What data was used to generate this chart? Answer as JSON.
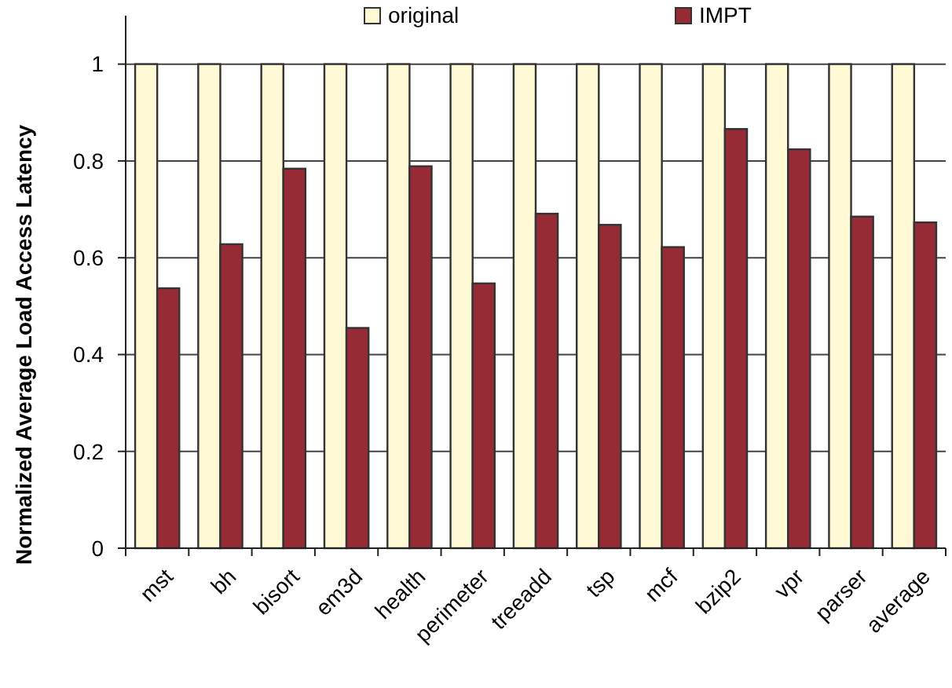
{
  "chart_data": {
    "type": "bar",
    "ylabel": "Normalized Average Load Access  Latency",
    "categories": [
      "mst",
      "bh",
      "bisort",
      "em3d",
      "health",
      "perimeter",
      "treeadd",
      "tsp",
      "mcf",
      "bzip2",
      "vpr",
      "parser",
      "average"
    ],
    "series": [
      {
        "name": "original",
        "color": "#fff9d6",
        "values": [
          1,
          1,
          1,
          1,
          1,
          1,
          1,
          1,
          1,
          1,
          1,
          1,
          1
        ]
      },
      {
        "name": "IMPT",
        "color": "#962b35",
        "values": [
          0.537,
          0.628,
          0.784,
          0.455,
          0.789,
          0.547,
          0.691,
          0.668,
          0.622,
          0.866,
          0.824,
          0.685,
          0.673
        ]
      }
    ],
    "ylim": [
      0,
      1.1
    ],
    "yticks": [
      0,
      0.2,
      0.4,
      0.6,
      0.8,
      1
    ],
    "grid": "y",
    "legend": "top"
  }
}
